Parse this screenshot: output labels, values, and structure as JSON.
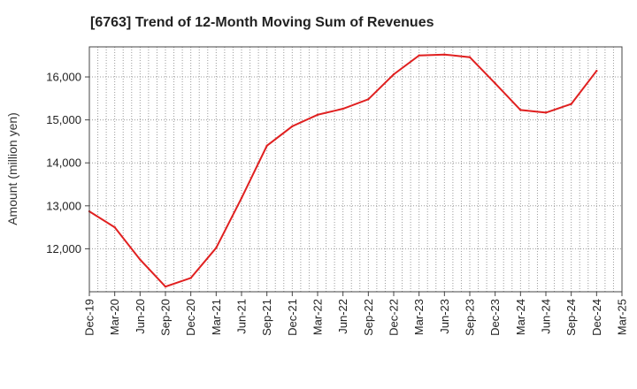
{
  "chart_data": {
    "type": "line",
    "title": "[6763]  Trend of 12-Month Moving Sum of Revenues",
    "xlabel": "",
    "ylabel": "Amount (million yen)",
    "categories": [
      "Dec-19",
      "Mar-20",
      "Jun-20",
      "Sep-20",
      "Dec-20",
      "Mar-21",
      "Jun-21",
      "Sep-21",
      "Dec-21",
      "Mar-22",
      "Jun-22",
      "Sep-22",
      "Dec-22",
      "Mar-23",
      "Jun-23",
      "Sep-23",
      "Dec-23",
      "Mar-24",
      "Jun-24",
      "Sep-24",
      "Dec-24",
      "Mar-25"
    ],
    "yticks": [
      12000,
      13000,
      14000,
      15000,
      16000
    ],
    "ytick_labels": [
      "12,000",
      "13,000",
      "14,000",
      "15,000",
      "16,000"
    ],
    "ylim": [
      11000,
      16700
    ],
    "grid": true,
    "series": [
      {
        "color": "#e02020",
        "values": [
          12870,
          12500,
          11750,
          11120,
          11320,
          12020,
          13180,
          14400,
          14850,
          15120,
          15260,
          15480,
          16060,
          16500,
          16520,
          16460,
          15850,
          15230,
          15170,
          15370,
          16140,
          null
        ]
      }
    ]
  }
}
